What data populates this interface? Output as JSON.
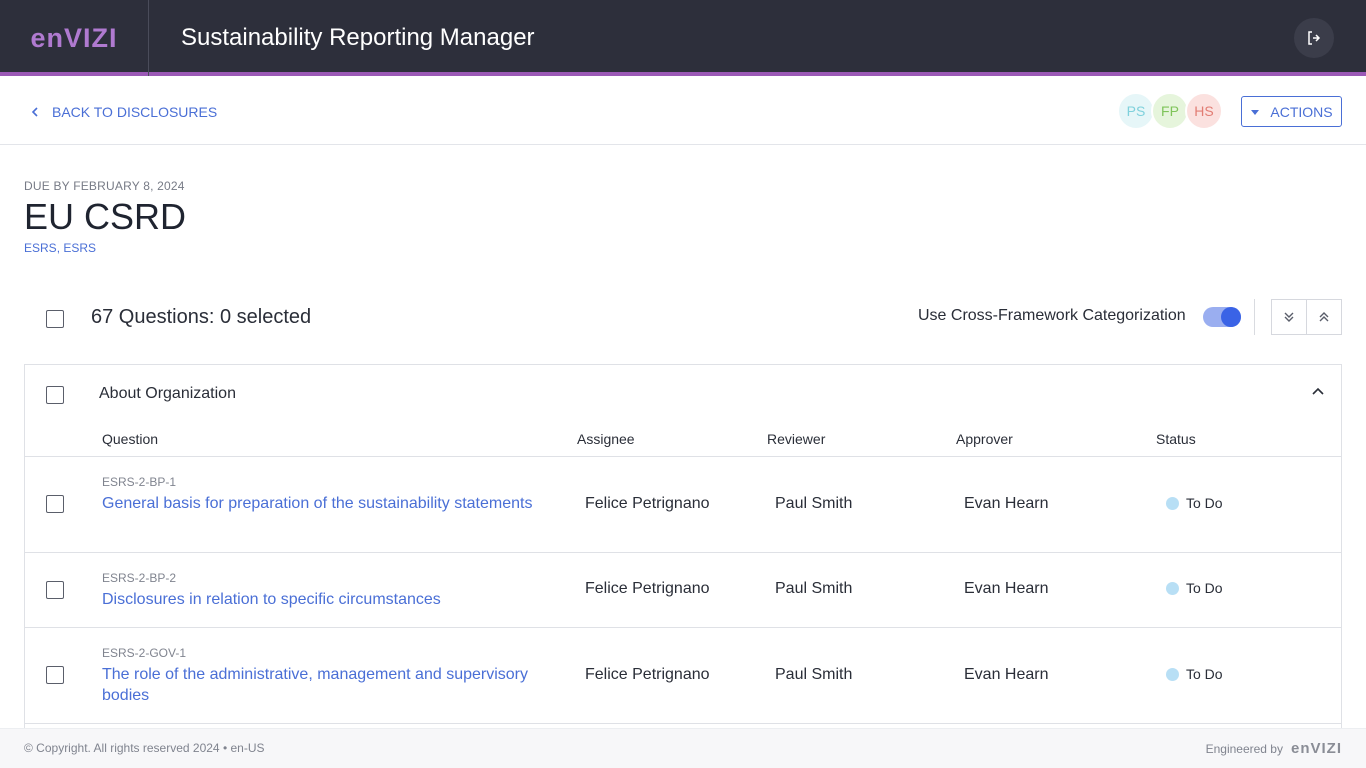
{
  "header": {
    "logo_text": "enVIZI",
    "app_title": "Sustainability Reporting Manager",
    "logout_icon": "logout-icon"
  },
  "subheader": {
    "back_label": "BACK TO DISCLOSURES",
    "avatars": [
      {
        "initials": "PS",
        "bg": "#e6f6f8",
        "fg": "#7fd1dc"
      },
      {
        "initials": "FP",
        "bg": "#e6f5dc",
        "fg": "#7fc45a"
      },
      {
        "initials": "HS",
        "bg": "#fbe1df",
        "fg": "#e27d74"
      }
    ],
    "actions_label": "ACTIONS"
  },
  "disclosure": {
    "due": "DUE BY FEBRUARY 8, 2024",
    "title": "EU CSRD",
    "tags": [
      "ESRS",
      "ESRS"
    ],
    "tag_separator": ","
  },
  "toolbar": {
    "count_label": "67 Questions: 0 selected",
    "cfc_label": "Use Cross-Framework Categorization",
    "cfc_enabled": true
  },
  "group": {
    "title": "About Organization",
    "columns": {
      "question": "Question",
      "assignee": "Assignee",
      "reviewer": "Reviewer",
      "approver": "Approver",
      "status": "Status"
    },
    "rows": [
      {
        "id": "ESRS-2-BP-1",
        "question": "General basis for preparation of the sustainability statements",
        "assignee": "Felice Petrignano",
        "reviewer": "Paul Smith",
        "approver": "Evan Hearn",
        "status": "To Do"
      },
      {
        "id": "ESRS-2-BP-2",
        "question": "Disclosures in relation to specific circumstances",
        "assignee": "Felice Petrignano",
        "reviewer": "Paul Smith",
        "approver": "Evan Hearn",
        "status": "To Do"
      },
      {
        "id": "ESRS-2-GOV-1",
        "question": "The role of the administrative, management and supervisory bodies",
        "assignee": "Felice Petrignano",
        "reviewer": "Paul Smith",
        "approver": "Evan Hearn",
        "status": "To Do"
      }
    ]
  },
  "footer": {
    "copyright": "© Copyright. All rights reserved 2024 • en-US",
    "engineered_by": "Engineered by",
    "logo_text": "enVIZI"
  },
  "colors": {
    "accent": "#4a6fd6",
    "topbar": "#2d2f3b",
    "brand": "#9b59b6",
    "status_todo": "#b8dff5"
  }
}
